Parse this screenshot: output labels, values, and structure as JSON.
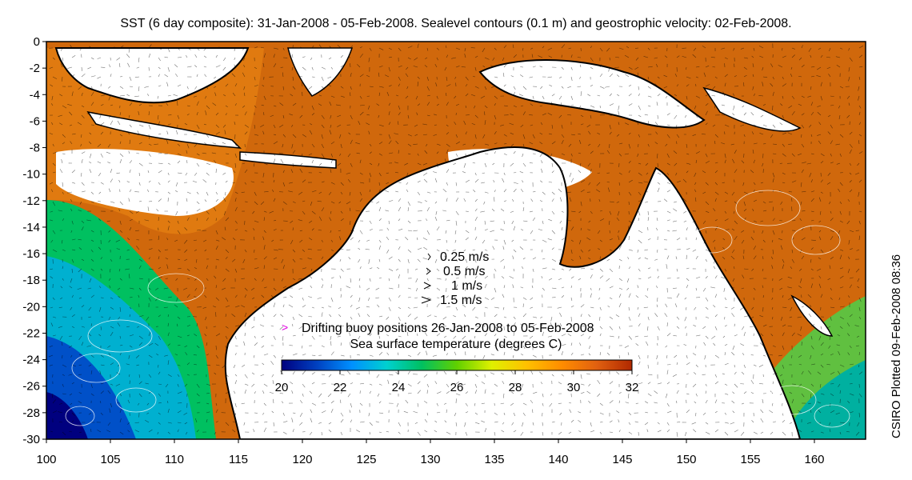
{
  "title": "SST (6 day composite): 31-Jan-2008 - 05-Feb-2008. Sealevel contours (0.1 m) and geostrophic velocity: 02-Feb-2008.",
  "side_note": "CSIRO Plotted 09-Feb-2008 08:36",
  "axes": {
    "x_ticks": [
      "100",
      "105",
      "110",
      "115",
      "120",
      "125",
      "130",
      "135",
      "140",
      "145",
      "150",
      "155",
      "160"
    ],
    "y_ticks": [
      "0",
      "-2",
      "-4",
      "-6",
      "-8",
      "-10",
      "-12",
      "-14",
      "-16",
      "-18",
      "-20",
      "-22",
      "-24",
      "-26",
      "-28",
      "-30"
    ],
    "x_range": [
      100,
      164
    ],
    "y_range": [
      -30,
      0
    ]
  },
  "velocity_key": {
    "items": [
      "0.25 m/s",
      "0.5 m/s",
      "1 m/s",
      "1.5 m/s"
    ]
  },
  "buoy_note": "Drifting buoy positions 26-Jan-2008 to 05-Feb-2008",
  "colorbar": {
    "title": "Sea surface temperature (degrees C)",
    "ticks": [
      "20",
      "22",
      "24",
      "26",
      "28",
      "30",
      "32"
    ],
    "range": [
      20,
      32
    ],
    "colors": [
      "#00007f",
      "#0040c0",
      "#0090ff",
      "#00d0d0",
      "#00c060",
      "#60d000",
      "#e0f000",
      "#ffc000",
      "#ff8c00",
      "#e06010",
      "#b02800"
    ]
  },
  "colors": {
    "land": "#ffffff",
    "coast": "#000000",
    "buoy": "#e000e0",
    "contour": "#ffffff",
    "cloud": "#ffffff"
  }
}
